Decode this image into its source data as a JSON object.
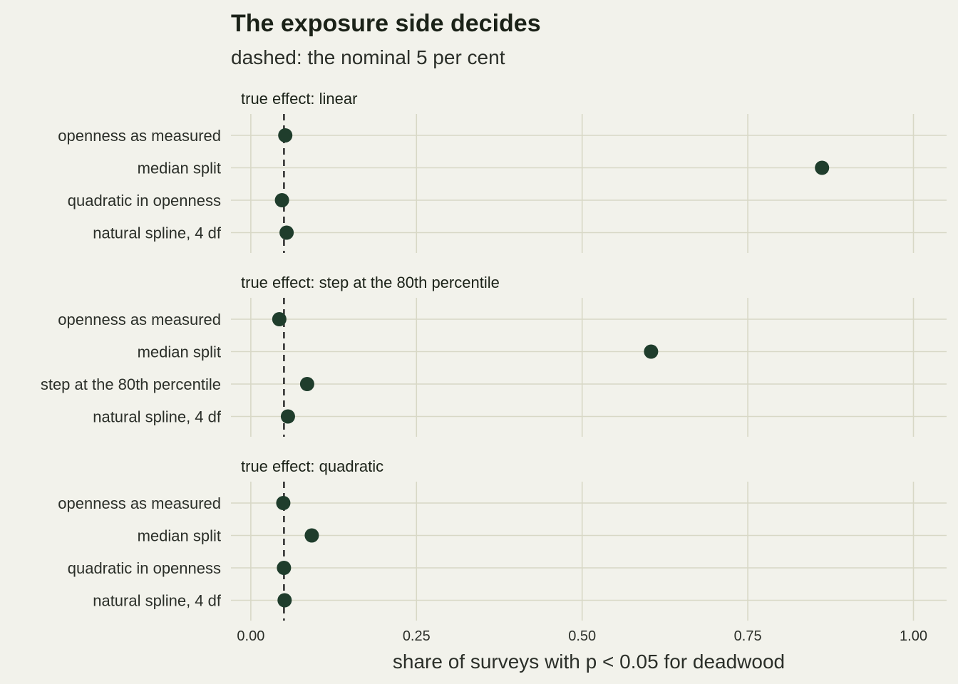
{
  "chart_data": {
    "type": "scatter",
    "title": "The exposure side decides",
    "subtitle": "dashed: the nominal 5 per cent",
    "xlabel": "share of surveys with p < 0.05 for deadwood",
    "xlim": [
      -0.03,
      1.05
    ],
    "xticks": [
      0,
      0.25,
      0.5,
      0.75,
      1
    ],
    "xtick_labels": [
      "0.00",
      "0.25",
      "0.50",
      "0.75",
      "1.00"
    ],
    "reference_x": 0.05,
    "colors": {
      "point": "#1f3d2c",
      "grid": "#d8d8c6",
      "background": "#f2f2eb"
    },
    "panels": [
      {
        "label": "true effect: linear",
        "rows": [
          {
            "label": "openness as measured",
            "value": 0.052
          },
          {
            "label": "median split",
            "value": 0.862
          },
          {
            "label": "quadratic in openness",
            "value": 0.047
          },
          {
            "label": "natural spline, 4 df",
            "value": 0.054
          }
        ]
      },
      {
        "label": "true effect: step at the 80th percentile",
        "rows": [
          {
            "label": "openness as measured",
            "value": 0.043
          },
          {
            "label": "median split",
            "value": 0.604
          },
          {
            "label": "step at the 80th percentile",
            "value": 0.085
          },
          {
            "label": "natural spline, 4 df",
            "value": 0.056
          }
        ]
      },
      {
        "label": "true effect: quadratic",
        "rows": [
          {
            "label": "openness as measured",
            "value": 0.049
          },
          {
            "label": "median split",
            "value": 0.092
          },
          {
            "label": "quadratic in openness",
            "value": 0.05
          },
          {
            "label": "natural spline, 4 df",
            "value": 0.051
          }
        ]
      }
    ]
  }
}
